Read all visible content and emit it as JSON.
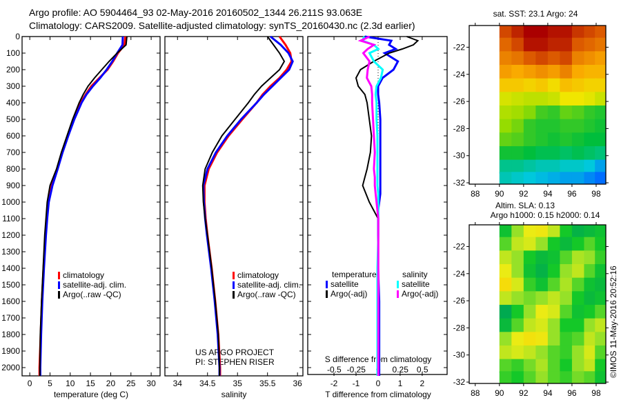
{
  "title_line1": "Argo profile: AO 5904464_93 02-May-2016 20160502_1344 26.211S 93.063E",
  "title_line2": "Climatology: CARS2009. Satellite-adjusted climatology: synTS_20160430.nc (2.3d earlier)",
  "side_stamp": "©IMOS 11-May-2016 20:52:16",
  "credit_line1": "US ARGO PROJECT",
  "credit_line2": "PI: STEPHEN RISER",
  "colors": {
    "climatology": "#ff0000",
    "satellite": "#0000ff",
    "argo": "#000000",
    "sal_satellite": "#00ffff",
    "sal_argo": "#ff00ff"
  },
  "chart_data": [
    {
      "type": "line",
      "id": "temperature",
      "xlabel": "temperature (deg C)",
      "ylabel": "",
      "xlim": [
        -1.9,
        32.2
      ],
      "ylim": [
        2050,
        0
      ],
      "xticks": [
        0,
        5,
        10,
        15,
        20,
        25,
        30
      ],
      "yticks": [
        0,
        100,
        200,
        300,
        400,
        500,
        600,
        700,
        800,
        900,
        1000,
        1100,
        1200,
        1300,
        1400,
        1500,
        1600,
        1700,
        1800,
        1900,
        2000
      ],
      "legend": [
        "climatology",
        "satellite-adj. clim.",
        "Argo(..raw -QC)"
      ],
      "depth": [
        0,
        50,
        100,
        150,
        200,
        250,
        300,
        350,
        400,
        500,
        600,
        700,
        800,
        900,
        1000,
        1100,
        1200,
        1400,
        1600,
        1800,
        2000,
        2050
      ],
      "series": [
        {
          "name": "climatology",
          "values": [
            23.6,
            23.4,
            21.8,
            20.6,
            19.2,
            17.2,
            15.2,
            13.8,
            12.6,
            10.9,
            9.4,
            8.0,
            6.8,
            5.4,
            4.6,
            4.2,
            3.9,
            3.4,
            3.0,
            2.7,
            2.4,
            2.4
          ]
        },
        {
          "name": "satellite-adj. clim.",
          "values": [
            23.0,
            22.9,
            21.6,
            20.4,
            19.0,
            17.4,
            15.6,
            14.0,
            12.8,
            11.0,
            9.5,
            8.1,
            6.9,
            5.6,
            4.7,
            4.3,
            4.0,
            3.5,
            3.1,
            2.8,
            2.6,
            2.6
          ]
        },
        {
          "name": "Argo(..raw -QC)",
          "values": [
            24.0,
            23.8,
            21.6,
            19.6,
            17.8,
            16.0,
            14.4,
            13.2,
            12.2,
            10.6,
            9.2,
            7.8,
            6.6,
            5.0,
            4.3,
            4.0,
            3.7,
            3.3,
            2.9,
            2.6,
            2.5,
            2.5
          ]
        }
      ]
    },
    {
      "type": "line",
      "id": "salinity",
      "xlabel": "salinity",
      "xlim": [
        33.79,
        36.09
      ],
      "ylim": [
        2050,
        0
      ],
      "xticks": [
        34,
        34.5,
        35,
        35.5,
        36
      ],
      "legend": [
        "climatology",
        "satellite-adj. clim.",
        "Argo(..raw -QC)"
      ],
      "depth": [
        0,
        50,
        100,
        150,
        200,
        250,
        300,
        350,
        400,
        500,
        600,
        700,
        800,
        900,
        1000,
        1100,
        1200,
        1400,
        1600,
        1800,
        2000,
        2050
      ],
      "series": [
        {
          "name": "climatology",
          "values": [
            35.7,
            35.8,
            35.88,
            35.9,
            35.82,
            35.7,
            35.55,
            35.42,
            35.32,
            35.08,
            34.85,
            34.66,
            34.52,
            34.45,
            34.45,
            34.47,
            34.5,
            34.57,
            34.63,
            34.68,
            34.71,
            34.71
          ]
        },
        {
          "name": "satellite-adj. clim.",
          "values": [
            35.55,
            35.72,
            35.85,
            35.92,
            35.86,
            35.72,
            35.58,
            35.44,
            35.32,
            35.06,
            34.83,
            34.64,
            34.5,
            34.43,
            34.44,
            34.46,
            34.49,
            34.56,
            34.62,
            34.67,
            34.7,
            34.7
          ]
        },
        {
          "name": "Argo(..raw -QC)",
          "values": [
            35.5,
            35.6,
            35.7,
            35.78,
            35.7,
            35.55,
            35.4,
            35.28,
            35.18,
            34.96,
            34.74,
            34.58,
            34.46,
            34.42,
            34.43,
            34.46,
            34.5,
            34.57,
            34.63,
            34.68,
            34.7,
            34.7
          ]
        }
      ]
    },
    {
      "type": "line",
      "id": "difference",
      "xlabel": "T difference from climatology",
      "xlabel_top": "S difference from climatology",
      "xlim": [
        -3.19,
        3.13
      ],
      "ylim": [
        2050,
        0
      ],
      "xticks": [
        -2,
        -1,
        0,
        1,
        2
      ],
      "xticks_top": [
        -0.5,
        -0.25,
        0,
        0.25,
        0.5
      ],
      "legend_temperature_title": "temperature",
      "legend_salinity_title": "salinity",
      "legend_temperature": [
        "satellite",
        "Argo(-adj)"
      ],
      "legend_salinity": [
        "satellite",
        "Argo(-adj)"
      ],
      "depth": [
        0,
        25,
        50,
        75,
        100,
        150,
        200,
        250,
        300,
        350,
        400,
        500,
        600,
        700,
        800,
        850,
        900,
        950,
        1000,
        1050,
        1100,
        1200,
        1400,
        1600,
        1800,
        2000,
        2050
      ],
      "series": [
        {
          "name": "T satellite",
          "axis": "T",
          "values": [
            -0.6,
            0.6,
            0.5,
            0.8,
            0.3,
            0.9,
            0.7,
            0.2,
            0.0,
            0.0,
            0.05,
            0.1,
            0.1,
            0.1,
            0.1,
            0.1,
            0.1,
            0.1,
            0.05,
            0.0,
            0.0,
            0.0,
            0.0,
            0.05,
            0.05,
            0.05,
            0.05
          ]
        },
        {
          "name": "T Argo(-adj)",
          "axis": "T",
          "values": [
            1.3,
            1.8,
            1.6,
            1.1,
            0.5,
            -0.2,
            -0.8,
            -1.0,
            -0.9,
            -0.6,
            -0.5,
            -0.4,
            -0.3,
            -0.35,
            -0.5,
            -0.6,
            -0.7,
            -0.55,
            -0.4,
            -0.2,
            0.0,
            0.0,
            0.0,
            0.0,
            0.0,
            0.0,
            0.0
          ]
        },
        {
          "name": "S satellite",
          "axis": "S",
          "values": [
            -0.16,
            -0.18,
            -0.05,
            0.0,
            -0.1,
            -0.05,
            0.05,
            0.03,
            -0.02,
            -0.03,
            -0.02,
            -0.02,
            -0.01,
            -0.01,
            -0.01,
            -0.01,
            -0.01,
            0.0,
            0.0,
            0.0,
            0.0,
            0.0,
            -0.01,
            -0.01,
            -0.01,
            -0.01,
            -0.01
          ]
        },
        {
          "name": "S Argo(-adj)",
          "axis": "S",
          "values": [
            -0.1,
            -0.2,
            -0.05,
            -0.12,
            -0.17,
            -0.1,
            -0.12,
            -0.13,
            -0.08,
            -0.07,
            -0.07,
            -0.06,
            -0.05,
            -0.04,
            -0.05,
            -0.04,
            -0.04,
            -0.03,
            -0.02,
            -0.01,
            0.0,
            0.0,
            0.0,
            0.0,
            0.0,
            0.0,
            0.0
          ]
        }
      ]
    },
    {
      "type": "heatmap",
      "id": "sst_map",
      "title": "sat. SST: 23.1 Argo: 24",
      "xlim": [
        87.5,
        98.8
      ],
      "ylim": [
        -32.1,
        -20.4
      ],
      "xticks": [
        88,
        90,
        92,
        94,
        96,
        98
      ],
      "yticks": [
        -22,
        -24,
        -26,
        -28,
        -30,
        -32
      ],
      "x": [
        90.5,
        91.5,
        92.5,
        93.5,
        94.5,
        95.5,
        96.5,
        97.5,
        98.4
      ],
      "y": [
        -20.8,
        -21.8,
        -22.8,
        -23.8,
        -24.8,
        -25.8,
        -26.8,
        -27.8,
        -28.8,
        -29.8,
        -30.8,
        -31.7
      ],
      "values": [
        [
          24.6,
          24.8,
          25.0,
          25.0,
          24.9,
          24.9,
          24.7,
          24.6,
          24.5
        ],
        [
          24.4,
          24.6,
          24.9,
          24.9,
          24.8,
          24.8,
          24.5,
          24.4,
          24.3
        ],
        [
          24.2,
          24.3,
          24.5,
          24.6,
          24.5,
          24.6,
          24.2,
          24.1,
          24.0
        ],
        [
          24.0,
          23.9,
          24.0,
          24.1,
          24.0,
          24.2,
          23.9,
          23.8,
          23.8
        ],
        [
          23.6,
          23.6,
          23.5,
          23.6,
          23.4,
          23.7,
          23.6,
          23.5,
          23.5
        ],
        [
          23.1,
          23.0,
          22.9,
          22.9,
          23.0,
          23.3,
          23.3,
          23.2,
          23.0
        ],
        [
          22.8,
          22.7,
          22.5,
          22.1,
          22.0,
          22.3,
          22.2,
          22.0,
          21.9
        ],
        [
          22.6,
          22.4,
          22.0,
          21.9,
          21.9,
          22.0,
          22.0,
          21.9,
          21.8
        ],
        [
          22.3,
          22.2,
          22.0,
          21.9,
          21.8,
          21.9,
          21.8,
          21.7,
          21.7
        ],
        [
          21.8,
          21.8,
          21.7,
          21.6,
          21.6,
          21.5,
          21.6,
          21.5,
          21.4
        ],
        [
          21.3,
          21.3,
          21.2,
          21.1,
          21.1,
          21.0,
          21.0,
          20.9,
          20.6
        ],
        [
          21.1,
          21.0,
          20.9,
          20.8,
          20.7,
          20.6,
          20.6,
          20.4,
          20.2
        ]
      ]
    },
    {
      "type": "heatmap",
      "id": "sla_map",
      "title_line1": "Altim. SLA: 0.13",
      "title_line2": "Argo h1000: 0.15 h2000: 0.14",
      "xlim": [
        87.5,
        98.8
      ],
      "ylim": [
        -32.1,
        -20.4
      ],
      "xticks": [
        88,
        90,
        92,
        94,
        96,
        98
      ],
      "yticks": [
        -22,
        -24,
        -26,
        -28,
        -30,
        -32
      ],
      "x": [
        90.5,
        91.5,
        92.5,
        93.5,
        94.5,
        95.5,
        96.5,
        97.5,
        98.4
      ],
      "y": [
        -20.8,
        -21.8,
        -22.8,
        -23.8,
        -24.8,
        -25.8,
        -26.8,
        -27.8,
        -28.8,
        -29.8,
        -30.8,
        -31.7
      ],
      "values": [
        [
          0.05,
          0.1,
          0.14,
          0.15,
          0.12,
          0.06,
          0.03,
          0.04,
          0.05
        ],
        [
          0.08,
          0.12,
          0.13,
          0.1,
          0.06,
          0.04,
          0.06,
          0.08,
          0.06
        ],
        [
          0.12,
          0.1,
          0.06,
          0.04,
          0.05,
          0.08,
          0.11,
          0.1,
          0.07
        ],
        [
          0.14,
          0.1,
          0.05,
          0.03,
          0.06,
          0.1,
          0.12,
          0.08,
          0.05
        ],
        [
          0.17,
          0.13,
          0.07,
          0.05,
          0.08,
          0.11,
          0.08,
          0.05,
          0.04
        ],
        [
          0.12,
          0.1,
          0.09,
          0.1,
          0.12,
          0.1,
          0.06,
          0.04,
          0.05
        ],
        [
          0.02,
          0.06,
          0.1,
          0.14,
          0.13,
          0.08,
          0.05,
          0.06,
          0.08
        ],
        [
          0.04,
          0.08,
          0.12,
          0.13,
          0.1,
          0.06,
          0.06,
          0.1,
          0.12
        ],
        [
          0.1,
          0.14,
          0.16,
          0.15,
          0.1,
          0.07,
          0.08,
          0.12,
          0.1
        ],
        [
          0.12,
          0.13,
          0.12,
          0.1,
          0.08,
          0.07,
          0.1,
          0.13,
          0.08
        ],
        [
          0.08,
          0.07,
          0.09,
          0.11,
          0.08,
          0.06,
          0.1,
          0.12,
          0.06
        ],
        [
          0.07,
          0.06,
          0.08,
          0.1,
          0.08,
          0.07,
          0.09,
          0.08,
          0.05
        ]
      ]
    }
  ]
}
